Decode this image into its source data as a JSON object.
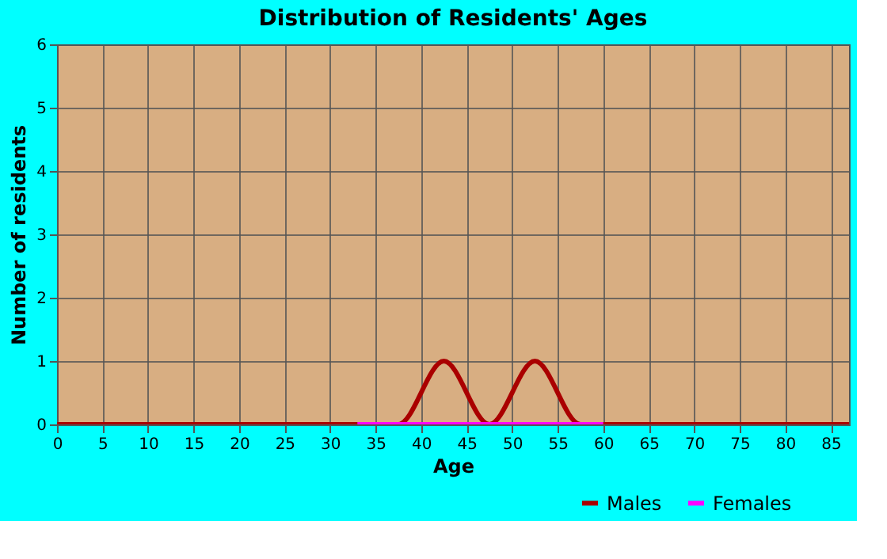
{
  "chart_data": {
    "type": "line",
    "title": "Distribution of Residents' Ages",
    "xlabel": "Age",
    "ylabel": "Number of residents",
    "series": [
      {
        "name": "Males",
        "color": "#aa0000",
        "x": [
          0,
          37.5,
          42.5,
          47.5,
          52.5,
          57.5,
          87
        ],
        "values": [
          0,
          0,
          1,
          0,
          1,
          0,
          0
        ]
      },
      {
        "name": "Females",
        "color": "#ff00ff",
        "x": [
          33,
          60
        ],
        "values": [
          0,
          0
        ]
      }
    ],
    "xlim": [
      0,
      87
    ],
    "xticks": [
      0,
      5,
      10,
      15,
      20,
      25,
      30,
      35,
      40,
      45,
      50,
      55,
      60,
      65,
      70,
      75,
      80,
      85
    ],
    "ylim": [
      0,
      6
    ],
    "yticks": [
      0,
      1,
      2,
      3,
      4,
      5,
      6
    ],
    "grid": true,
    "legend": "bottom right",
    "marker": "none",
    "line_style": "solid"
  }
}
